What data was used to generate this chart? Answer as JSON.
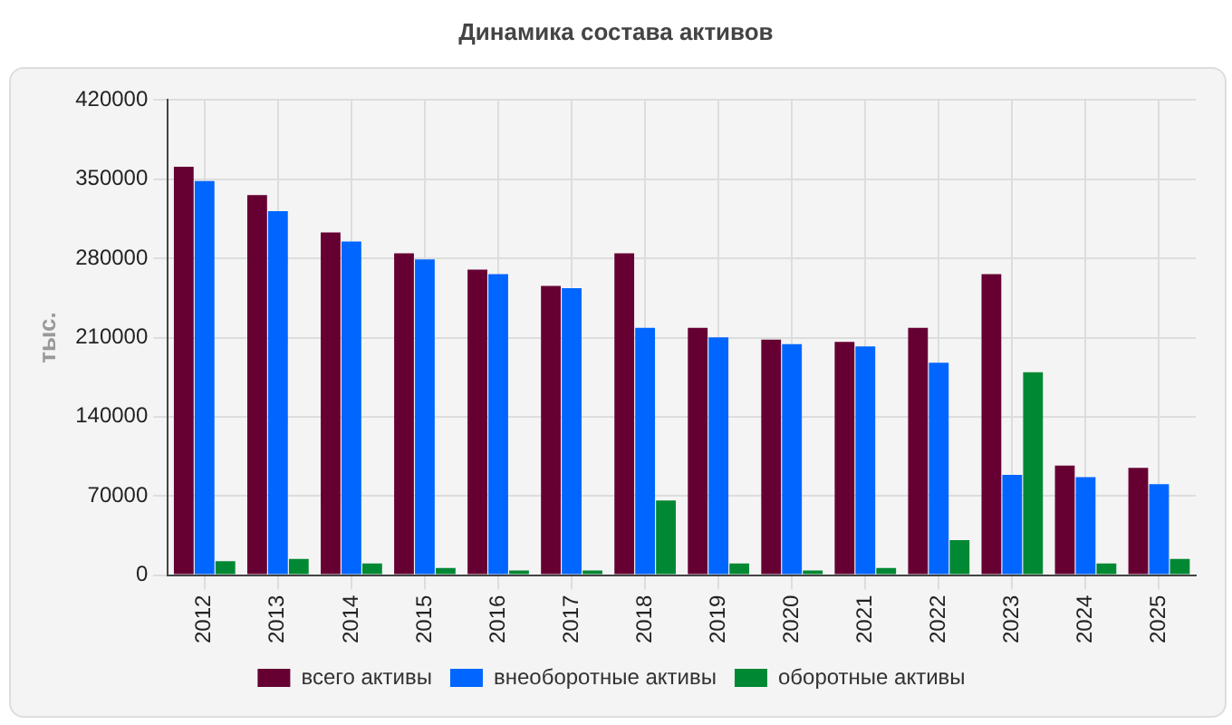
{
  "chart_data": {
    "type": "bar",
    "title": "Динамика состава активов",
    "ylabel": "тыс.",
    "categories": [
      "2012",
      "2013",
      "2014",
      "2015",
      "2016",
      "2017",
      "2018",
      "2019",
      "2020",
      "2021",
      "2022",
      "2023",
      "2024",
      "2025"
    ],
    "series": [
      {
        "name": "всего активы",
        "color": "#660033",
        "values": [
          361000,
          336000,
          303000,
          284600,
          270000,
          255700,
          284600,
          218600,
          208300,
          206200,
          218600,
          266000,
          96900,
          94900
        ]
      },
      {
        "name": "внеоборотные активы",
        "color": "#0066ff",
        "values": [
          348500,
          321700,
          294900,
          279100,
          266000,
          253600,
          218600,
          210300,
          204200,
          202100,
          187700,
          88700,
          86600,
          80400
        ]
      },
      {
        "name": "оборотные активы",
        "color": "#008833",
        "values": [
          12400,
          14400,
          10300,
          6200,
          4100,
          4100,
          66000,
          10300,
          4100,
          6200,
          30900,
          179400,
          10300,
          14400
        ]
      }
    ],
    "ylim": [
      0,
      420000
    ],
    "yticks": [
      0,
      70000,
      140000,
      210000,
      280000,
      350000,
      420000
    ],
    "grid": true,
    "legend": "bottom"
  }
}
